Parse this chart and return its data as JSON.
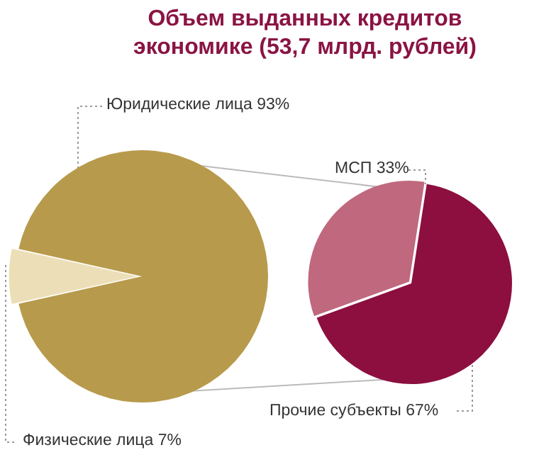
{
  "chart_data": [
    {
      "type": "pie",
      "title": "Объем выданных кредитов экономике (53,7 млрд. рублей)",
      "categories": [
        "Юридические лица",
        "Физические лица"
      ],
      "values": [
        93,
        7
      ],
      "colors": [
        "#b89a4c",
        "#ecdfb8"
      ],
      "value_labels": [
        "93%",
        "7%"
      ]
    },
    {
      "type": "pie",
      "categories": [
        "МСП",
        "Прочие субъекты"
      ],
      "values": [
        33,
        67
      ],
      "colors": [
        "#c0687e",
        "#8c0f3f"
      ],
      "value_labels": [
        "33%",
        "67%"
      ]
    }
  ]
}
